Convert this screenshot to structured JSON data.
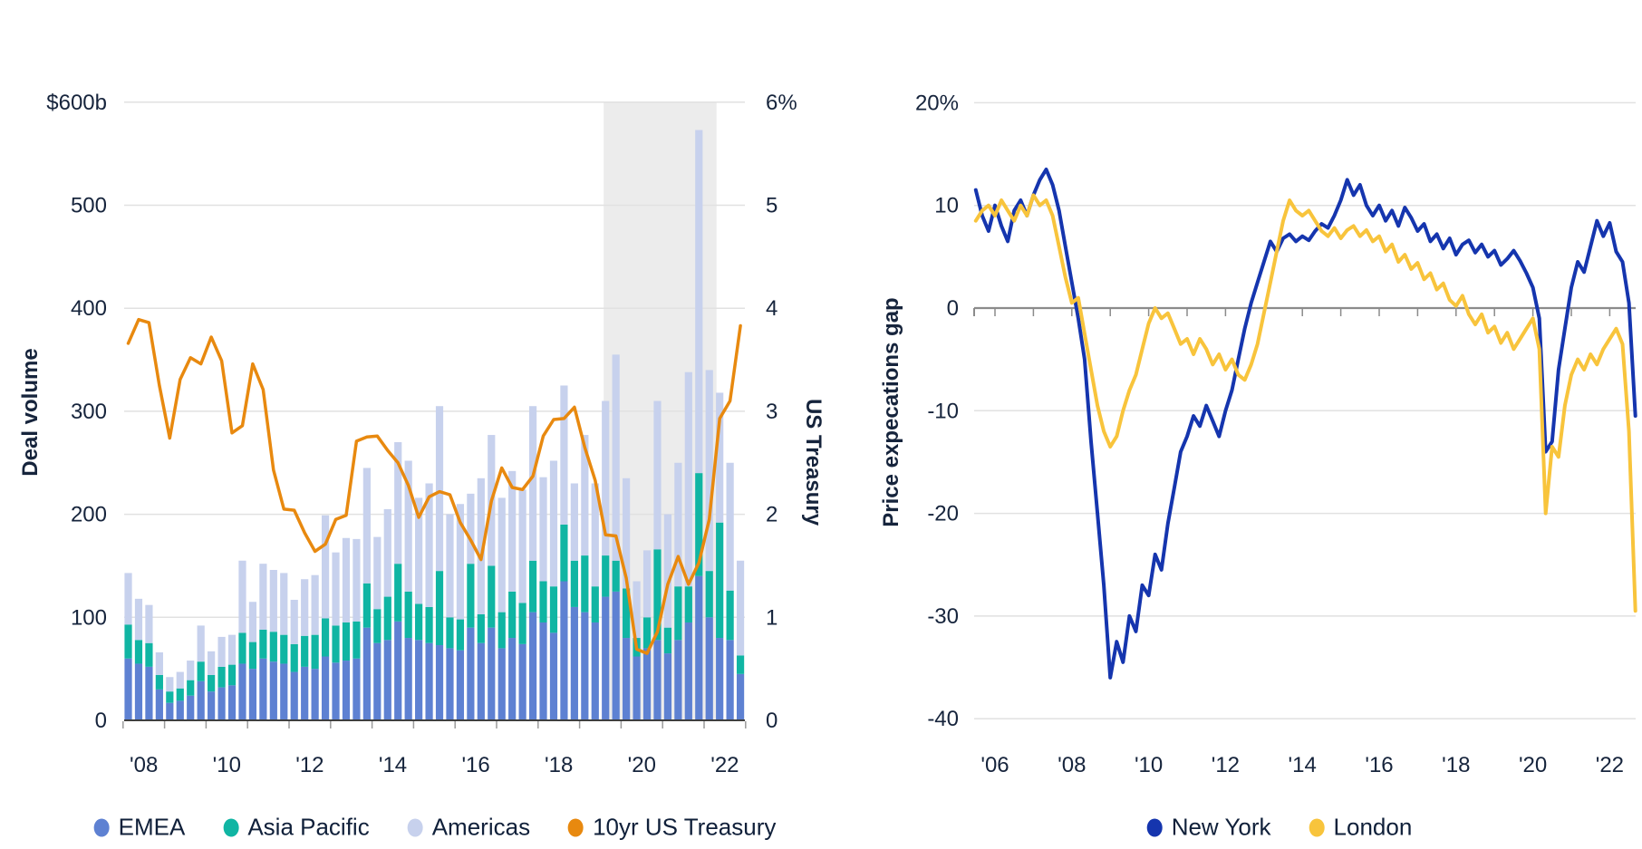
{
  "page": {
    "background": "#ffffff",
    "text_color": "#16243c"
  },
  "chart_data": [
    {
      "name": "deal-volume-by-region",
      "type": "stacked-bar+line",
      "title": "",
      "y_axis_left_label": "Deal volume",
      "y_axis_right_label": "US Treasury",
      "ylim_left": [
        0,
        600
      ],
      "ylim_right": [
        0,
        6
      ],
      "y_ticks_left": {
        "values": [
          0,
          100,
          200,
          300,
          400,
          500,
          600
        ],
        "labels": [
          "0",
          "100",
          "200",
          "300",
          "400",
          "500",
          "$600b"
        ]
      },
      "y_ticks_right": {
        "values": [
          0,
          1,
          2,
          3,
          4,
          5,
          6
        ],
        "labels": [
          "0",
          "1",
          "2",
          "3",
          "4",
          "5",
          "6%"
        ]
      },
      "x_label_years": [
        2008,
        2010,
        2012,
        2014,
        2016,
        2018,
        2020,
        2022
      ],
      "x_tick_labels": [
        "'08",
        "'10",
        "'12",
        "'14",
        "'16",
        "'18",
        "'20",
        "'22"
      ],
      "bar_period": "quarterly",
      "quarters_start": "2008Q1",
      "quarters_end": "2022Q4",
      "series": [
        {
          "name": "EMEA",
          "color": "#5e81d2",
          "values": [
            60,
            55,
            52,
            30,
            17,
            19,
            24,
            38,
            28,
            32,
            34,
            55,
            50,
            60,
            57,
            55,
            47,
            52,
            50,
            62,
            56,
            58,
            60,
            90,
            75,
            78,
            96,
            80,
            78,
            75,
            73,
            70,
            68,
            90,
            75,
            90,
            70,
            80,
            74,
            105,
            95,
            85,
            135,
            110,
            105,
            95,
            120,
            125,
            80,
            62,
            70,
            78,
            65,
            78,
            95,
            140,
            100,
            80,
            78,
            45
          ]
        },
        {
          "name": "Asia Pacific",
          "color": "#10b5a3",
          "values": [
            33,
            23,
            23,
            14,
            11,
            12,
            15,
            19,
            16,
            20,
            20,
            30,
            26,
            28,
            29,
            28,
            27,
            30,
            33,
            37,
            36,
            37,
            36,
            43,
            33,
            42,
            56,
            45,
            35,
            35,
            72,
            30,
            30,
            62,
            28,
            60,
            35,
            45,
            40,
            50,
            40,
            45,
            55,
            45,
            55,
            35,
            40,
            30,
            48,
            18,
            30,
            88,
            25,
            52,
            35,
            100,
            45,
            112,
            48,
            18
          ]
        },
        {
          "name": "Americas",
          "color": "#c7d1ed",
          "values": [
            50,
            40,
            37,
            22,
            14,
            16,
            19,
            35,
            23,
            29,
            29,
            70,
            39,
            64,
            60,
            60,
            43,
            55,
            58,
            100,
            71,
            82,
            80,
            112,
            70,
            85,
            118,
            127,
            103,
            120,
            160,
            100,
            112,
            68,
            132,
            127,
            111,
            117,
            110,
            150,
            101,
            122,
            135,
            75,
            117,
            100,
            150,
            200,
            107,
            55,
            65,
            144,
            110,
            120,
            208,
            333,
            195,
            126,
            124,
            92
          ]
        }
      ],
      "line_series": {
        "name": "10yr US Treasury",
        "color": "#e8890f",
        "axis": "right",
        "values": [
          3.66,
          3.89,
          3.86,
          3.25,
          2.74,
          3.31,
          3.52,
          3.46,
          3.72,
          3.49,
          2.79,
          2.86,
          3.46,
          3.21,
          2.43,
          2.05,
          2.04,
          1.82,
          1.64,
          1.71,
          1.95,
          1.99,
          2.71,
          2.75,
          2.76,
          2.62,
          2.5,
          2.28,
          1.97,
          2.17,
          2.22,
          2.19,
          1.92,
          1.75,
          1.56,
          2.13,
          2.45,
          2.26,
          2.24,
          2.37,
          2.76,
          2.92,
          2.93,
          3.04,
          2.65,
          2.33,
          1.8,
          1.79,
          1.38,
          0.69,
          0.65,
          0.86,
          1.32,
          1.59,
          1.32,
          1.53,
          1.95,
          2.93,
          3.1,
          3.83
        ]
      },
      "shaded_region": {
        "from": 2019.58,
        "to": 2022.3,
        "color": "#ececec"
      },
      "legend": [
        {
          "label": "EMEA",
          "color": "#5e81d2"
        },
        {
          "label": "Asia Pacific",
          "color": "#10b5a3"
        },
        {
          "label": "Americas",
          "color": "#c7d1ed"
        },
        {
          "label": "10yr US Treasury",
          "color": "#e8890f"
        }
      ],
      "grid_color": "#e1e1e1",
      "baseline_color": "#3f3f3f",
      "tick_color": "#9b9b9b"
    },
    {
      "name": "price-expectations-gap",
      "type": "line",
      "title": "",
      "y_axis_label": "Price expecations gap",
      "ylim": [
        -40,
        20
      ],
      "y_ticks": {
        "values": [
          20,
          10,
          0,
          -10,
          -20,
          -30,
          -40
        ],
        "labels": [
          "20%",
          "10",
          "0",
          "-10",
          "-20",
          "-30",
          "-40"
        ]
      },
      "x_label_years": [
        2006,
        2008,
        2010,
        2012,
        2014,
        2016,
        2018,
        2020,
        2022
      ],
      "x_tick_labels": [
        "'06",
        "'08",
        "'10",
        "'12",
        "'14",
        "'16",
        "'18",
        "'20",
        "'22"
      ],
      "x_start": 2005.5,
      "x_step_years": 0.16667,
      "series": [
        {
          "name": "New York",
          "color": "#1535ae",
          "values": [
            11.5,
            9,
            7.5,
            10,
            8,
            6.5,
            9.5,
            10.5,
            9,
            11,
            12.5,
            13.5,
            12,
            9.5,
            6,
            2.5,
            -1,
            -5,
            -13,
            -20,
            -27,
            -36,
            -32.5,
            -34.5,
            -30,
            -31.5,
            -27,
            -28,
            -24,
            -25.5,
            -21,
            -17.5,
            -14,
            -12.5,
            -10.5,
            -11.5,
            -9.5,
            -11,
            -12.5,
            -10,
            -8,
            -5,
            -2,
            0.5,
            2.5,
            4.5,
            6.5,
            5.5,
            6.8,
            7.2,
            6.5,
            7,
            6.6,
            7.5,
            8.2,
            7.8,
            9,
            10.5,
            12.5,
            11,
            12,
            10,
            9,
            10,
            8.5,
            9.5,
            8,
            9.8,
            8.8,
            7.5,
            8.2,
            6.5,
            7.2,
            5.8,
            6.8,
            5.2,
            6.2,
            6.6,
            5.4,
            6.2,
            5,
            5.6,
            4.2,
            4.8,
            5.6,
            4.6,
            3.4,
            2,
            -1,
            -14,
            -13,
            -6,
            -2,
            2,
            4.5,
            3.5,
            6,
            8.5,
            7,
            8.3,
            5.5,
            4.5,
            0.5,
            -10.5
          ]
        },
        {
          "name": "London",
          "color": "#f8c43c",
          "values": [
            8.5,
            9.5,
            10,
            9,
            10.5,
            9.5,
            8.5,
            10,
            9,
            11,
            10,
            10.5,
            9,
            6,
            3,
            0.5,
            1,
            -2.5,
            -6,
            -9.5,
            -12,
            -13.5,
            -12.5,
            -10,
            -8,
            -6.5,
            -4,
            -1.5,
            0,
            -1,
            -0.5,
            -2,
            -3.5,
            -3,
            -4.5,
            -3,
            -4,
            -5.5,
            -4.5,
            -6,
            -5,
            -6.5,
            -7,
            -5.5,
            -3.5,
            -0.5,
            2.5,
            5.5,
            8.5,
            10.5,
            9.5,
            9,
            9.5,
            8.5,
            7.5,
            7,
            7.8,
            6.8,
            7.6,
            8,
            7,
            7.6,
            6.5,
            7,
            5.5,
            6.2,
            4.5,
            5.2,
            3.8,
            4.4,
            2.8,
            3.4,
            1.8,
            2.4,
            0.8,
            0.2,
            1.2,
            -0.6,
            -1.6,
            -0.6,
            -2.4,
            -1.8,
            -3.4,
            -2.4,
            -4,
            -3,
            -2,
            -1,
            -4,
            -20,
            -13.5,
            -14.5,
            -9.5,
            -6.5,
            -5,
            -6,
            -4.5,
            -5.5,
            -4,
            -3,
            -2,
            -3.5,
            -12,
            -29.5
          ]
        }
      ],
      "legend": [
        {
          "label": "New York",
          "color": "#1535ae"
        },
        {
          "label": "London",
          "color": "#f8c43c"
        }
      ],
      "grid_color": "#e1e1e1",
      "zero_line_color": "#8b8b8b"
    }
  ]
}
